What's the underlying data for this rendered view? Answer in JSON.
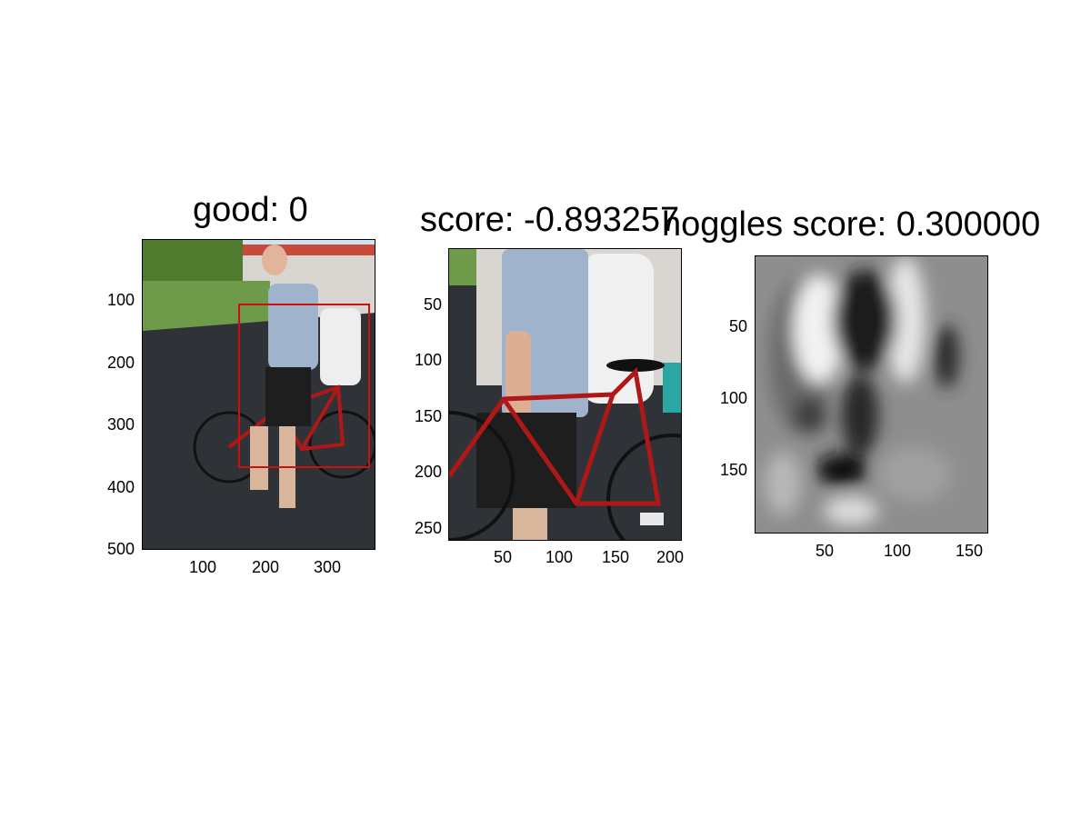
{
  "panels": [
    {
      "title": "good: 0",
      "yticks": [
        "100",
        "200",
        "300",
        "400",
        "500"
      ],
      "xticks": [
        "100",
        "200",
        "300"
      ]
    },
    {
      "title": "score: -0.893257",
      "yticks": [
        "50",
        "100",
        "150",
        "200",
        "250"
      ],
      "xticks": [
        "50",
        "100",
        "150",
        "200"
      ]
    },
    {
      "title": "hoggles score: 0.300000",
      "yticks": [
        "50",
        "100",
        "150"
      ],
      "xticks": [
        "50",
        "100",
        "150"
      ]
    }
  ],
  "colors": {
    "bbox": "#cc1111",
    "bike": "#b01818",
    "shirt": "#9fb4cc",
    "asphalt": "#2f3338",
    "grass": "#6f9a4a",
    "sky": "#cfe3ef"
  }
}
